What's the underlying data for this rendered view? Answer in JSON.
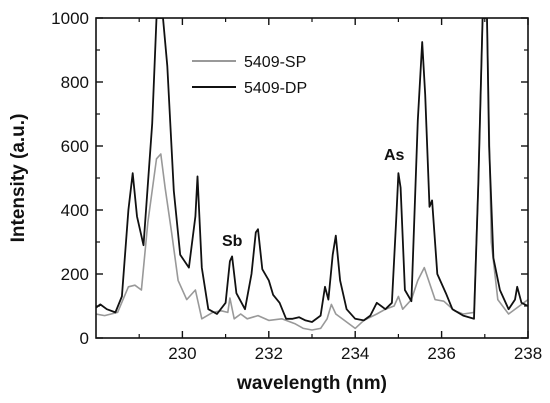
{
  "chart_data": {
    "type": "line",
    "xlabel": "wavelength (nm)",
    "ylabel": "Intensity (a.u.)",
    "xlim": [
      228,
      238
    ],
    "ylim": [
      0,
      1000
    ],
    "x_ticks": [
      230,
      232,
      234,
      236,
      238
    ],
    "y_ticks": [
      0,
      200,
      400,
      600,
      800,
      1000
    ],
    "legend_position": "top-left",
    "annotations": [
      {
        "text": "Sb",
        "x": 231.1,
        "y": 290
      },
      {
        "text": "As",
        "x": 234.8,
        "y": 560
      }
    ],
    "series": [
      {
        "name": "5409-SP",
        "color": "#999999",
        "points": [
          [
            228.0,
            75
          ],
          [
            228.2,
            70
          ],
          [
            228.5,
            80
          ],
          [
            228.75,
            160
          ],
          [
            228.9,
            165
          ],
          [
            229.05,
            150
          ],
          [
            229.2,
            360
          ],
          [
            229.4,
            560
          ],
          [
            229.5,
            575
          ],
          [
            229.6,
            470
          ],
          [
            229.75,
            330
          ],
          [
            229.9,
            180
          ],
          [
            230.1,
            120
          ],
          [
            230.3,
            150
          ],
          [
            230.45,
            60
          ],
          [
            230.7,
            80
          ],
          [
            230.9,
            85
          ],
          [
            231.05,
            80
          ],
          [
            231.1,
            125
          ],
          [
            231.2,
            60
          ],
          [
            231.35,
            75
          ],
          [
            231.5,
            60
          ],
          [
            231.75,
            70
          ],
          [
            232.0,
            55
          ],
          [
            232.3,
            60
          ],
          [
            232.6,
            45
          ],
          [
            232.8,
            30
          ],
          [
            233.0,
            25
          ],
          [
            233.2,
            30
          ],
          [
            233.35,
            60
          ],
          [
            233.45,
            105
          ],
          [
            233.55,
            75
          ],
          [
            233.8,
            50
          ],
          [
            234.0,
            30
          ],
          [
            234.2,
            55
          ],
          [
            234.5,
            75
          ],
          [
            234.7,
            90
          ],
          [
            234.9,
            100
          ],
          [
            235.0,
            130
          ],
          [
            235.1,
            90
          ],
          [
            235.3,
            120
          ],
          [
            235.45,
            180
          ],
          [
            235.6,
            220
          ],
          [
            235.7,
            180
          ],
          [
            235.85,
            120
          ],
          [
            236.05,
            115
          ],
          [
            236.3,
            85
          ],
          [
            236.5,
            75
          ],
          [
            236.75,
            80
          ],
          [
            236.85,
            480
          ],
          [
            236.95,
            1000
          ],
          [
            237.05,
            1000
          ],
          [
            237.15,
            300
          ],
          [
            237.3,
            120
          ],
          [
            237.55,
            75
          ],
          [
            237.8,
            100
          ],
          [
            238.0,
            120
          ]
        ]
      },
      {
        "name": "5409-DP",
        "color": "#111111",
        "points": [
          [
            228.0,
            95
          ],
          [
            228.1,
            105
          ],
          [
            228.25,
            90
          ],
          [
            228.45,
            80
          ],
          [
            228.6,
            130
          ],
          [
            228.75,
            400
          ],
          [
            228.85,
            515
          ],
          [
            228.95,
            380
          ],
          [
            229.1,
            290
          ],
          [
            229.3,
            670
          ],
          [
            229.4,
            1000
          ],
          [
            229.55,
            1000
          ],
          [
            229.65,
            850
          ],
          [
            229.8,
            460
          ],
          [
            229.95,
            260
          ],
          [
            230.15,
            220
          ],
          [
            230.3,
            380
          ],
          [
            230.35,
            505
          ],
          [
            230.45,
            220
          ],
          [
            230.6,
            90
          ],
          [
            230.8,
            75
          ],
          [
            231.0,
            110
          ],
          [
            231.1,
            240
          ],
          [
            231.15,
            255
          ],
          [
            231.25,
            140
          ],
          [
            231.45,
            90
          ],
          [
            231.6,
            200
          ],
          [
            231.7,
            330
          ],
          [
            231.75,
            340
          ],
          [
            231.85,
            215
          ],
          [
            232.0,
            180
          ],
          [
            232.1,
            135
          ],
          [
            232.25,
            110
          ],
          [
            232.4,
            60
          ],
          [
            232.55,
            60
          ],
          [
            232.7,
            65
          ],
          [
            232.85,
            55
          ],
          [
            233.0,
            50
          ],
          [
            233.2,
            70
          ],
          [
            233.3,
            160
          ],
          [
            233.38,
            120
          ],
          [
            233.48,
            260
          ],
          [
            233.55,
            320
          ],
          [
            233.65,
            180
          ],
          [
            233.8,
            90
          ],
          [
            234.0,
            60
          ],
          [
            234.2,
            55
          ],
          [
            234.35,
            70
          ],
          [
            234.5,
            110
          ],
          [
            234.7,
            90
          ],
          [
            234.85,
            110
          ],
          [
            234.95,
            370
          ],
          [
            235.0,
            515
          ],
          [
            235.05,
            470
          ],
          [
            235.15,
            150
          ],
          [
            235.3,
            115
          ],
          [
            235.45,
            680
          ],
          [
            235.55,
            925
          ],
          [
            235.62,
            760
          ],
          [
            235.72,
            410
          ],
          [
            235.78,
            430
          ],
          [
            235.9,
            200
          ],
          [
            236.1,
            140
          ],
          [
            236.25,
            90
          ],
          [
            236.5,
            70
          ],
          [
            236.75,
            60
          ],
          [
            236.85,
            480
          ],
          [
            236.95,
            1000
          ],
          [
            237.05,
            1000
          ],
          [
            237.1,
            600
          ],
          [
            237.2,
            250
          ],
          [
            237.35,
            150
          ],
          [
            237.55,
            90
          ],
          [
            237.7,
            120
          ],
          [
            237.75,
            160
          ],
          [
            237.85,
            110
          ],
          [
            238.0,
            100
          ]
        ]
      }
    ]
  }
}
